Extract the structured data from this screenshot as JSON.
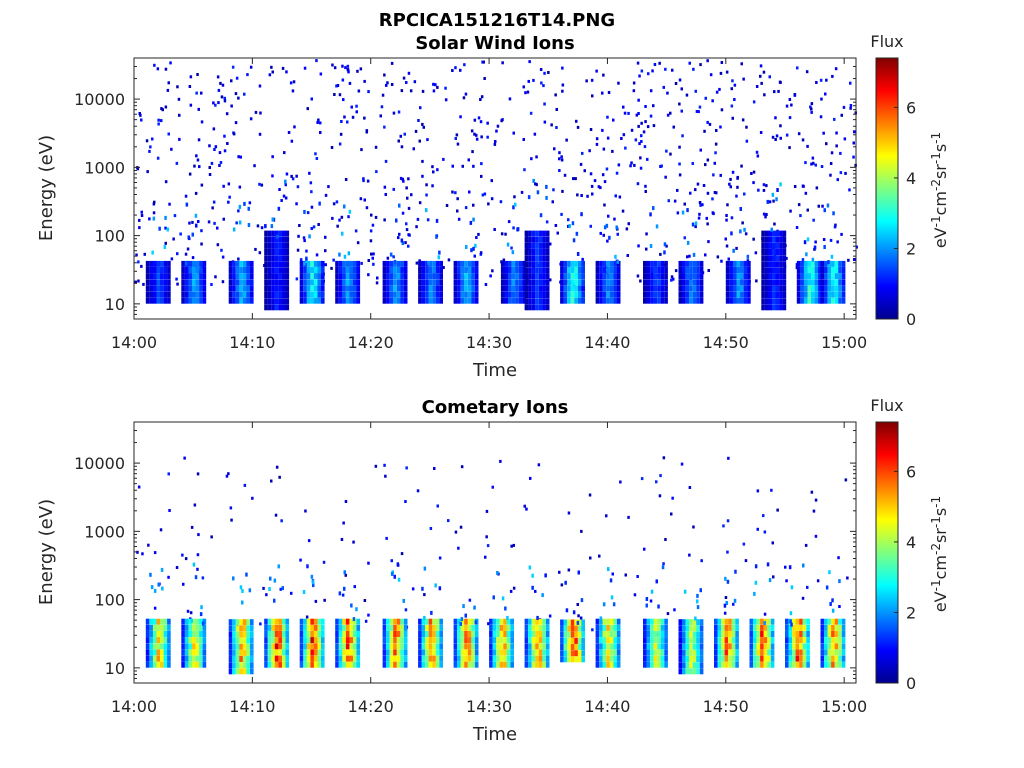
{
  "figure": {
    "title": "RPCICA151216T14.PNG"
  },
  "colors": {
    "axis": "#262626",
    "background": "#ffffff",
    "colormap": "jet"
  },
  "chart_data": [
    {
      "type": "heatmap",
      "title": "Solar Wind Ions",
      "xlabel": "Time",
      "ylabel": "Energy (eV)",
      "x_range": [
        "14:00",
        "15:01"
      ],
      "y_range": [
        6,
        40000
      ],
      "y_scale": "log",
      "x_ticks": [
        "14:00",
        "14:10",
        "14:20",
        "14:30",
        "14:40",
        "14:50",
        "15:00"
      ],
      "y_ticks": [
        "10",
        "100",
        "1000",
        "10000"
      ],
      "grid": false,
      "colorbar": {
        "title": "Flux",
        "label": "eV-1cm-2sr-1s-1",
        "range": [
          0,
          7.4
        ],
        "ticks": [
          "0",
          "2",
          "4",
          "6"
        ],
        "placement": "right"
      },
      "bands": [
        {
          "time": "14:02",
          "energy_low": 10,
          "energy_high": 40,
          "flux": 1.5
        },
        {
          "time": "14:05",
          "energy_low": 10,
          "energy_high": 40,
          "flux": 2.2
        },
        {
          "time": "14:09",
          "energy_low": 10,
          "energy_high": 40,
          "flux": 2.5
        },
        {
          "time": "14:12",
          "energy_low": 8,
          "energy_high": 100,
          "flux": 1.2
        },
        {
          "time": "14:15",
          "energy_low": 10,
          "energy_high": 40,
          "flux": 3.0
        },
        {
          "time": "14:18",
          "energy_low": 10,
          "energy_high": 40,
          "flux": 2.2
        },
        {
          "time": "14:22",
          "energy_low": 10,
          "energy_high": 40,
          "flux": 2.2
        },
        {
          "time": "14:25",
          "energy_low": 10,
          "energy_high": 40,
          "flux": 2.0
        },
        {
          "time": "14:28",
          "energy_low": 10,
          "energy_high": 40,
          "flux": 2.4
        },
        {
          "time": "14:32",
          "energy_low": 10,
          "energy_high": 40,
          "flux": 2.0
        },
        {
          "time": "14:34",
          "energy_low": 8,
          "energy_high": 100,
          "flux": 1.4
        },
        {
          "time": "14:37",
          "energy_low": 10,
          "energy_high": 40,
          "flux": 3.2
        },
        {
          "time": "14:40",
          "energy_low": 10,
          "energy_high": 40,
          "flux": 2.0
        },
        {
          "time": "14:44",
          "energy_low": 10,
          "energy_high": 40,
          "flux": 1.5
        },
        {
          "time": "14:47",
          "energy_low": 10,
          "energy_high": 40,
          "flux": 2.0
        },
        {
          "time": "14:51",
          "energy_low": 10,
          "energy_high": 40,
          "flux": 2.2
        },
        {
          "time": "14:54",
          "energy_low": 8,
          "energy_high": 100,
          "flux": 1.3
        },
        {
          "time": "14:57",
          "energy_low": 10,
          "energy_high": 40,
          "flux": 3.2
        },
        {
          "time": "14:59",
          "energy_low": 10,
          "energy_high": 40,
          "flux": 3.0
        }
      ]
    },
    {
      "type": "heatmap",
      "title": "Cometary Ions",
      "xlabel": "Time",
      "ylabel": "Energy (eV)",
      "x_range": [
        "14:00",
        "15:01"
      ],
      "y_range": [
        6,
        40000
      ],
      "y_scale": "log",
      "x_ticks": [
        "14:00",
        "14:10",
        "14:20",
        "14:30",
        "14:40",
        "14:50",
        "15:00"
      ],
      "y_ticks": [
        "10",
        "100",
        "1000",
        "10000"
      ],
      "grid": false,
      "colorbar": {
        "title": "Flux",
        "label": "eV-1cm-2sr-1s-1",
        "range": [
          0,
          7.4
        ],
        "ticks": [
          "0",
          "2",
          "4",
          "6"
        ],
        "placement": "right"
      },
      "bands": [
        {
          "time": "14:02",
          "energy_low": 10,
          "energy_high": 45,
          "flux": 5.2
        },
        {
          "time": "14:05",
          "energy_low": 10,
          "energy_high": 45,
          "flux": 5.0
        },
        {
          "time": "14:09",
          "energy_low": 8,
          "energy_high": 45,
          "flux": 5.6
        },
        {
          "time": "14:12",
          "energy_low": 10,
          "energy_high": 45,
          "flux": 6.4
        },
        {
          "time": "14:15",
          "energy_low": 10,
          "energy_high": 45,
          "flux": 6.5
        },
        {
          "time": "14:18",
          "energy_low": 10,
          "energy_high": 45,
          "flux": 6.2
        },
        {
          "time": "14:22",
          "energy_low": 10,
          "energy_high": 45,
          "flux": 6.0
        },
        {
          "time": "14:25",
          "energy_low": 10,
          "energy_high": 45,
          "flux": 5.8
        },
        {
          "time": "14:28",
          "energy_low": 10,
          "energy_high": 45,
          "flux": 5.9
        },
        {
          "time": "14:31",
          "energy_low": 10,
          "energy_high": 45,
          "flux": 5.6
        },
        {
          "time": "14:34",
          "energy_low": 10,
          "energy_high": 45,
          "flux": 5.8
        },
        {
          "time": "14:37",
          "energy_low": 12,
          "energy_high": 45,
          "flux": 6.6
        },
        {
          "time": "14:40",
          "energy_low": 10,
          "energy_high": 45,
          "flux": 5.3
        },
        {
          "time": "14:44",
          "energy_low": 10,
          "energy_high": 45,
          "flux": 4.6
        },
        {
          "time": "14:47",
          "energy_low": 8,
          "energy_high": 45,
          "flux": 4.4
        },
        {
          "time": "14:50",
          "energy_low": 10,
          "energy_high": 45,
          "flux": 6.0
        },
        {
          "time": "14:53",
          "energy_low": 10,
          "energy_high": 45,
          "flux": 6.3
        },
        {
          "time": "14:56",
          "energy_low": 10,
          "energy_high": 45,
          "flux": 6.4
        },
        {
          "time": "14:59",
          "energy_low": 10,
          "energy_high": 45,
          "flux": 5.8
        }
      ]
    }
  ]
}
